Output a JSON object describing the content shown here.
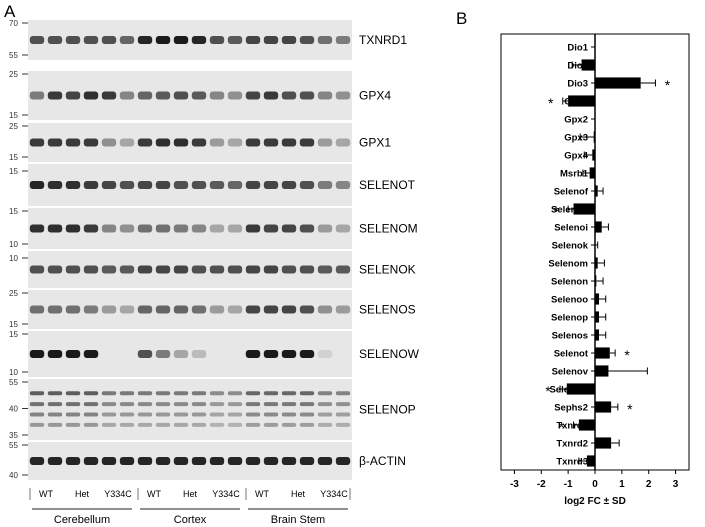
{
  "panel_a": {
    "letter": "A",
    "blots": [
      {
        "name": "TXNRD1",
        "mw": [
          "70",
          "55"
        ],
        "pattern": [
          0.7,
          0.7,
          0.7,
          0.7,
          0.7,
          0.6,
          0.9,
          0.95,
          0.95,
          0.9,
          0.7,
          0.65,
          0.75,
          0.75,
          0.75,
          0.7,
          0.55,
          0.5
        ]
      },
      {
        "name": "GPX4",
        "mw": [
          "25",
          "15"
        ],
        "pattern": [
          0.5,
          0.8,
          0.75,
          0.85,
          0.8,
          0.45,
          0.6,
          0.65,
          0.7,
          0.65,
          0.45,
          0.4,
          0.75,
          0.8,
          0.7,
          0.7,
          0.45,
          0.4
        ]
      },
      {
        "name": "GPX1",
        "mw": [
          "25",
          "15"
        ],
        "pattern": [
          0.8,
          0.8,
          0.8,
          0.8,
          0.4,
          0.3,
          0.8,
          0.85,
          0.85,
          0.8,
          0.35,
          0.3,
          0.8,
          0.8,
          0.8,
          0.8,
          0.35,
          0.3
        ]
      },
      {
        "name": "SELENOT",
        "mw": [
          "15"
        ],
        "pattern": [
          0.9,
          0.85,
          0.85,
          0.8,
          0.75,
          0.7,
          0.75,
          0.75,
          0.7,
          0.7,
          0.65,
          0.6,
          0.75,
          0.75,
          0.75,
          0.7,
          0.5,
          0.45
        ]
      },
      {
        "name": "SELENOM",
        "mw": [
          "15",
          "10"
        ],
        "pattern": [
          0.85,
          0.85,
          0.85,
          0.8,
          0.45,
          0.4,
          0.55,
          0.55,
          0.5,
          0.45,
          0.3,
          0.3,
          0.8,
          0.75,
          0.75,
          0.7,
          0.35,
          0.3
        ]
      },
      {
        "name": "SELENOK",
        "mw": [
          "10"
        ],
        "pattern": [
          0.7,
          0.7,
          0.7,
          0.7,
          0.65,
          0.65,
          0.75,
          0.75,
          0.75,
          0.7,
          0.7,
          0.7,
          0.75,
          0.75,
          0.7,
          0.7,
          0.65,
          0.65
        ]
      },
      {
        "name": "SELENOS",
        "mw": [
          "25",
          "15"
        ],
        "pattern": [
          0.55,
          0.55,
          0.55,
          0.5,
          0.35,
          0.3,
          0.6,
          0.6,
          0.6,
          0.55,
          0.35,
          0.3,
          0.75,
          0.75,
          0.75,
          0.7,
          0.4,
          0.35
        ]
      },
      {
        "name": "SELENOW",
        "mw": [
          "15",
          "10"
        ],
        "pattern": [
          0.95,
          0.95,
          0.95,
          0.95,
          0.05,
          0.05,
          0.7,
          0.5,
          0.3,
          0.2,
          0.05,
          0.05,
          0.95,
          0.95,
          0.95,
          0.95,
          0.1,
          0.05
        ]
      },
      {
        "name": "SELENOP",
        "mw": [
          "55",
          "40",
          "35"
        ],
        "pattern": [
          0.75,
          0.75,
          0.75,
          0.75,
          0.6,
          0.6,
          0.6,
          0.6,
          0.6,
          0.6,
          0.5,
          0.5,
          0.7,
          0.7,
          0.7,
          0.7,
          0.55,
          0.55
        ]
      },
      {
        "name": "β-ACTIN",
        "mw": [
          "55",
          "40"
        ],
        "pattern": [
          0.9,
          0.9,
          0.9,
          0.9,
          0.9,
          0.9,
          0.9,
          0.9,
          0.9,
          0.9,
          0.9,
          0.9,
          0.9,
          0.9,
          0.9,
          0.9,
          0.9,
          0.9
        ]
      }
    ],
    "genotypes": [
      "WT",
      "Het",
      "Y334C"
    ],
    "regions": [
      "Cerebellum",
      "Cortex",
      "Brain Stem"
    ]
  },
  "chart_data": {
    "letter": "B",
    "type": "bar",
    "orientation": "horizontal",
    "xlabel": "log2 FC ± SD",
    "xlim": [
      -3.5,
      3.5
    ],
    "xticks": [
      -3,
      -2,
      -1,
      0,
      1,
      2,
      3
    ],
    "categories": [
      "Dio1",
      "Dio2",
      "Dio3",
      "Gpx1",
      "Gpx2",
      "Gpx3",
      "Gpx4",
      "Msrb1",
      "Selenof",
      "Selenoh",
      "Selenoi",
      "Selenok",
      "Selenom",
      "Selenon",
      "Selenoo",
      "Selenop",
      "Selenos",
      "Selenot",
      "Selenov",
      "Selenow",
      "Sephs2",
      "Txnrd1",
      "Txnrd2",
      "Txnrd3"
    ],
    "values": [
      0,
      -0.5,
      1.7,
      -1.0,
      0,
      -0.05,
      -0.1,
      -0.2,
      0.1,
      -0.8,
      0.25,
      0,
      0.1,
      0.05,
      0.15,
      0.15,
      0.15,
      0.55,
      0.5,
      -1.05,
      0.6,
      -0.6,
      0.6,
      -0.3
    ],
    "sd": [
      0,
      0.35,
      0.55,
      0.2,
      0,
      0.5,
      0.3,
      0.25,
      0.2,
      0.2,
      0.25,
      0.1,
      0.25,
      0.25,
      0.25,
      0.25,
      0.25,
      0.2,
      1.45,
      0.25,
      0.25,
      0.2,
      0.3,
      0.3
    ],
    "significant": [
      false,
      false,
      true,
      true,
      false,
      false,
      false,
      false,
      false,
      true,
      false,
      false,
      false,
      false,
      false,
      false,
      false,
      true,
      false,
      true,
      true,
      true,
      false,
      false
    ],
    "star_symbol": "*",
    "bar_color": "#000000"
  }
}
